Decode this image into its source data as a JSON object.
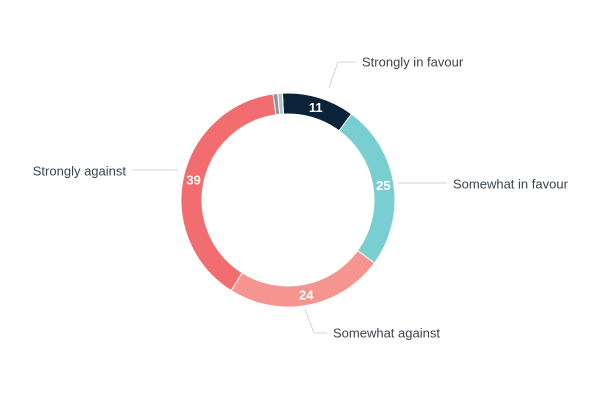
{
  "chart_data": {
    "type": "pie",
    "donut": true,
    "title": "",
    "slices": [
      {
        "label": "Strongly in favour",
        "value": 11,
        "value_label": "11",
        "color": "#0b2339"
      },
      {
        "label": "Somewhat in favour",
        "value": 25,
        "value_label": "25",
        "color": "#79ced1"
      },
      {
        "label": "Somewhat against",
        "value": 24,
        "value_label": "24",
        "color": "#f6958f"
      },
      {
        "label": "Strongly against",
        "value": 39,
        "value_label": "39",
        "color": "#f26d70"
      },
      {
        "label": "",
        "value": 0.7,
        "value_label": "",
        "color": "#8c96a0"
      },
      {
        "label": "",
        "value": 0.7,
        "value_label": "",
        "color": "#b8c0c8"
      }
    ]
  }
}
